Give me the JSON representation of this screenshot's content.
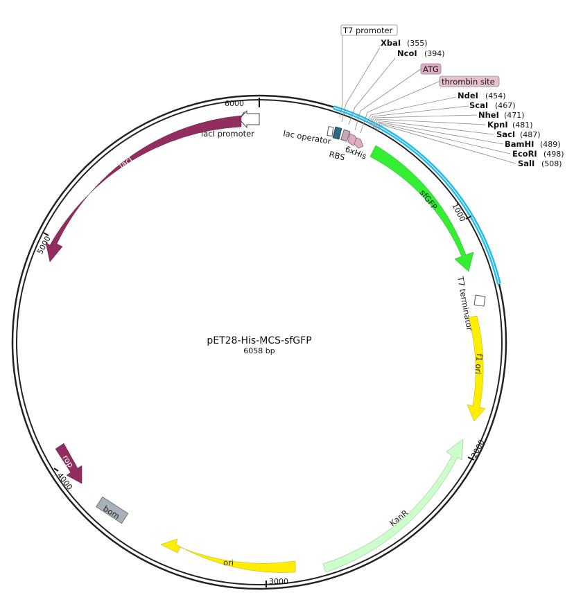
{
  "plasmid": {
    "name": "pET28-His-MCS-sfGFP",
    "size": "6058 bp"
  },
  "ticks": [
    "1000",
    "2000",
    "3000",
    "4000",
    "5000",
    "6000"
  ],
  "feature_labels": {
    "laci_promoter": "lacI promoter",
    "laci": "lacI",
    "lac_operator": "lac operator",
    "rbs": "RBS",
    "his": "6xHis",
    "sfgfp": "sfGFP",
    "t7_terminator": "T7 terminator",
    "f1_ori": "f1 ori",
    "kanr": "KanR",
    "ori": "ori",
    "bom": "bom",
    "rop": "rop"
  },
  "boxed_labels": {
    "t7_promoter": "T7 promoter",
    "atg": "ATG",
    "thrombin": "thrombin site"
  },
  "sites": [
    {
      "name": "XbaI",
      "pos": "(355)"
    },
    {
      "name": "NcoI",
      "pos": "(394)"
    },
    {
      "name": "NdeI",
      "pos": "(454)"
    },
    {
      "name": "ScaI",
      "pos": "(467)"
    },
    {
      "name": "NheI",
      "pos": "(471)"
    },
    {
      "name": "KpnI",
      "pos": "(481)"
    },
    {
      "name": "SacI",
      "pos": "(487)"
    },
    {
      "name": "BamHI",
      "pos": "(489)"
    },
    {
      "name": "EcoRI",
      "pos": "(498)"
    },
    {
      "name": "SalI",
      "pos": "(508)"
    }
  ],
  "colors": {
    "laci": "#922d60",
    "rop": "#922d60",
    "sfgfp": "#33ee33",
    "f1_ori": "#ffee00",
    "ori": "#ffee00",
    "kanr": "#ccffcc",
    "bom": "#a8b0b8",
    "cloning_region": "#22bbee",
    "rbs": "#2b6a82",
    "his": "#e0aac4",
    "thrombin": "#e8c0d0",
    "backbone": "#222222"
  }
}
